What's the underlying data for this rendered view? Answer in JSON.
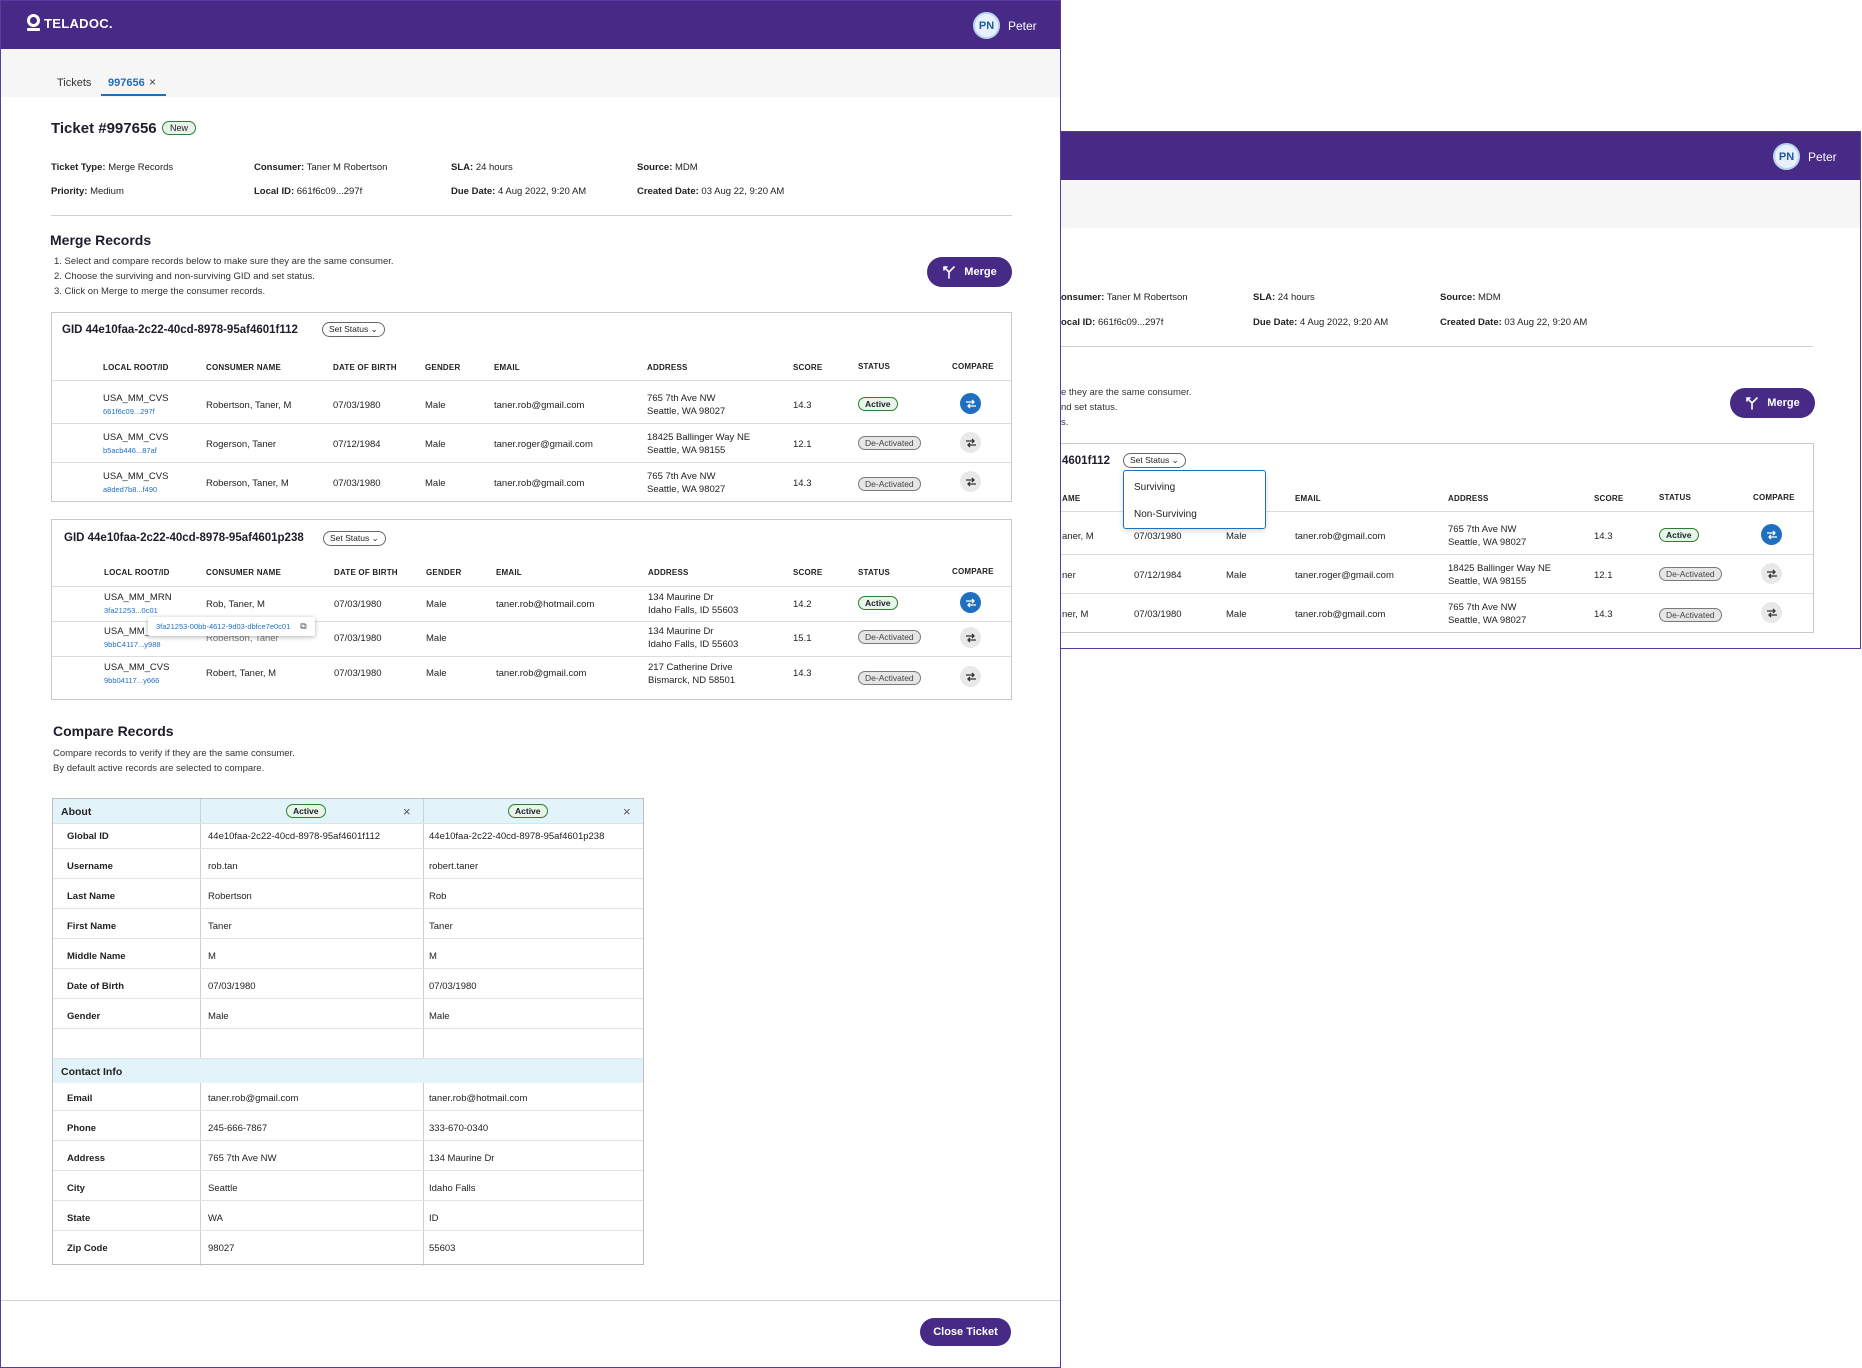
{
  "brand": {
    "name": "TELADOC."
  },
  "user": {
    "initials": "PN",
    "name": "Peter"
  },
  "tabs": {
    "tickets": "Tickets",
    "active": "997656",
    "close": "×"
  },
  "ticket": {
    "title": "Ticket #997656",
    "badge": "New",
    "type_label": "Ticket Type:",
    "type": "Merge Records",
    "consumer_label": "Consumer:",
    "consumer": "Taner M Robertson",
    "sla_label": "SLA:",
    "sla": "24 hours",
    "source_label": "Source:",
    "source": "MDM",
    "priority_label": "Priority:",
    "priority": "Medium",
    "local_id_label": "Local ID:",
    "local_id": "661f6c09...297f",
    "due_label": "Due Date:",
    "due": "4 Aug 2022, 9:20 AM",
    "created_label": "Created Date:",
    "created": "03 Aug 22, 9:20 AM"
  },
  "merge": {
    "title": "Merge Records",
    "step1": "1.  Select and compare records below to make sure they are the same consumer.",
    "step2": "2.  Choose the surviving and non-surviving GID and set status.",
    "step3": "3.  Click on Merge to merge the consumer records.",
    "button": "Merge"
  },
  "columns": {
    "local": "LOCAL ROOT/ID",
    "name": "CONSUMER NAME",
    "dob": "DATE OF BIRTH",
    "gender": "GENDER",
    "email": "EMAIL",
    "address": "ADDRESS",
    "score": "SCORE",
    "status": "STATUS",
    "compare": "COMPARE"
  },
  "set_status": "Set Status",
  "group1": {
    "gid": "GID 44e10faa-2c22-40cd-8978-95af4601f112",
    "rows": [
      {
        "root": "USA_MM_CVS",
        "id": "661f6c09...297f",
        "name": "Robertson, Taner, M",
        "dob": "07/03/1980",
        "gender": "Male",
        "email": "taner.rob@gmail.com",
        "addr1": "765 7th Ave NW",
        "addr2": "Seattle, WA 98027",
        "score": "14.3",
        "status": "Active"
      },
      {
        "root": "USA_MM_CVS",
        "id": "b5acb446...87af",
        "name": "Rogerson, Taner",
        "dob": "07/12/1984",
        "gender": "Male",
        "email": "taner.roger@gmail.com",
        "addr1": "18425 Ballinger Way NE",
        "addr2": "Seattle, WA 98155",
        "score": "12.1",
        "status": "De-Activated"
      },
      {
        "root": "USA_MM_CVS",
        "id": "a8ded7b8...f490",
        "name": "Roberson, Taner, M",
        "dob": "07/03/1980",
        "gender": "Male",
        "email": "taner.rob@gmail.com",
        "addr1": "765 7th Ave NW",
        "addr2": "Seattle, WA 98027",
        "score": "14.3",
        "status": "De-Activated"
      }
    ]
  },
  "group2": {
    "gid": "GID 44e10faa-2c22-40cd-8978-95af4601p238",
    "rows": [
      {
        "root": "USA_MM_MRN",
        "id": "3fa21253...0c01",
        "name": "Rob, Taner, M",
        "dob": "07/03/1980",
        "gender": "Male",
        "email": "taner.rob@hotmail.com",
        "addr1": "134 Maurine Dr",
        "addr2": "Idaho Falls, ID 55603",
        "score": "14.2",
        "status": "Active"
      },
      {
        "root": "USA_MM_",
        "id": "9bbC4117...y988",
        "name": "Robertson, Taner",
        "dob": "07/03/1980",
        "gender": "Male",
        "email": "",
        "addr1": "134 Maurine Dr",
        "addr2": "Idaho Falls, ID 55603",
        "score": "15.1",
        "status": "De-Activated"
      },
      {
        "root": "USA_MM_CVS",
        "id": "9bb04117...y666",
        "name": "Robert, Taner, M",
        "dob": "07/03/1980",
        "gender": "Male",
        "email": "taner.rob@gmail.com",
        "addr1": "217 Catherine Drive",
        "addr2": "Bismarck, ND 58501",
        "score": "14.3",
        "status": "De-Activated"
      }
    ],
    "tooltip": "3fa21253-00bb-4612-9d03-dbfce7e0c01"
  },
  "compare": {
    "title": "Compare Records",
    "desc1": "Compare records to verify if they are the same consumer.",
    "desc2": "By default active records are selected to compare.",
    "about": "About",
    "contact": "Contact Info",
    "status_a": "Active",
    "status_b": "Active",
    "about_rows": [
      {
        "label": "Global ID",
        "a": "44e10faa-2c22-40cd-8978-95af4601f112",
        "b": "44e10faa-2c22-40cd-8978-95af4601p238"
      },
      {
        "label": "Username",
        "a": "rob.tan",
        "b": "robert.taner"
      },
      {
        "label": "Last Name",
        "a": "Robertson",
        "b": "Rob"
      },
      {
        "label": "First Name",
        "a": "Taner",
        "b": "Taner"
      },
      {
        "label": "Middle Name",
        "a": "M",
        "b": "M"
      },
      {
        "label": "Date of Birth",
        "a": "07/03/1980",
        "b": "07/03/1980"
      },
      {
        "label": "Gender",
        "a": "Male",
        "b": "Male"
      }
    ],
    "contact_rows": [
      {
        "label": "Email",
        "a": "taner.rob@gmail.com",
        "b": "taner.rob@hotmail.com"
      },
      {
        "label": "Phone",
        "a": "245-666-7867",
        "b": "333-670-0340"
      },
      {
        "label": "Address",
        "a": "765 7th Ave NW",
        "b": "134 Maurine Dr"
      },
      {
        "label": "City",
        "a": "Seattle",
        "b": "Idaho Falls"
      },
      {
        "label": "State",
        "a": "WA",
        "b": "ID"
      },
      {
        "label": "Zip Code",
        "a": "98027",
        "b": "55603"
      }
    ]
  },
  "close_button": "Close Ticket",
  "second": {
    "consumer_label": "onsumer:",
    "consumer": "Taner M Robertson",
    "local_id_label": "ocal ID:",
    "local_id": "661f6c09...297f",
    "sla_label": "SLA:",
    "sla": "24 hours",
    "due_label": "Due Date:",
    "due": "4 Aug 2022, 9:20 AM",
    "source_label": "Source:",
    "source": "MDM",
    "created_label": "Created Date:",
    "created": "03 Aug 22, 9:20 AM",
    "frag1": "e they are the same consumer.",
    "frag2": "nd set status.",
    "frag3": "s.",
    "gid": "4601f112",
    "col_name": "AME",
    "dropdown": [
      "Surviving",
      "Non-Surviving"
    ],
    "rows": [
      {
        "name": "aner, M",
        "dob": "07/03/1980",
        "gender": "Male",
        "email": "taner.rob@gmail.com",
        "addr1": "765 7th Ave NW",
        "addr2": "Seattle, WA 98027",
        "score": "14.3",
        "status": "Active"
      },
      {
        "name": "ner",
        "dob": "07/12/1984",
        "gender": "Male",
        "email": "taner.roger@gmail.com",
        "addr1": "18425 Ballinger Way NE",
        "addr2": "Seattle, WA 98155",
        "score": "12.1",
        "status": "De-Activated"
      },
      {
        "name": "ner, M",
        "dob": "07/03/1980",
        "gender": "Male",
        "email": "taner.rob@gmail.com",
        "addr1": "765 7th Ave NW",
        "addr2": "Seattle, WA 98027",
        "score": "14.3",
        "status": "De-Activated"
      }
    ]
  }
}
